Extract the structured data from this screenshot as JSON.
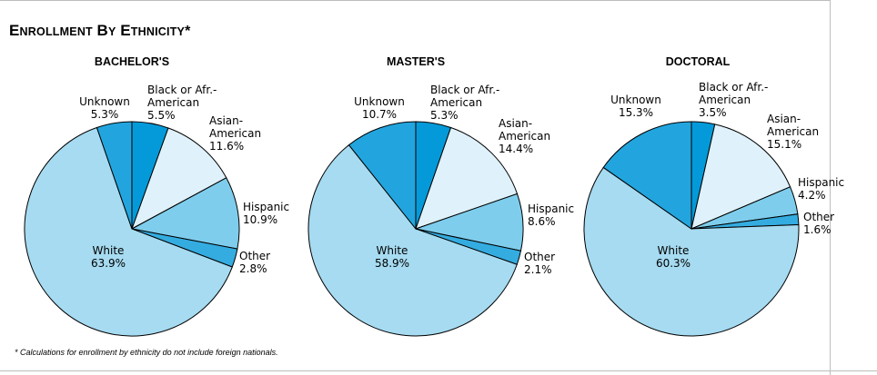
{
  "title": "Enrollment by Ethnicity*",
  "footnote": "* Calculations for enrollment by ethnicity do not include foreign nationals.",
  "colors": {
    "white": "#a6dbf1",
    "unknown": "#22a5de",
    "black": "#049ad9",
    "asian": "#dff1fa",
    "hispanic": "#7fcdec",
    "other": "#34ace0"
  },
  "chart_data": [
    {
      "type": "pie",
      "title": "BACHELOR'S",
      "slices": [
        {
          "name": "Black or Afr.-\nAmerican",
          "value": 5.5,
          "label": "5.5%",
          "color": "black"
        },
        {
          "name": "Asian-\nAmerican",
          "value": 11.6,
          "label": "11.6%",
          "color": "asian"
        },
        {
          "name": "Hispanic",
          "value": 10.9,
          "label": "10.9%",
          "color": "hispanic"
        },
        {
          "name": "Other",
          "value": 2.8,
          "label": "2.8%",
          "color": "other"
        },
        {
          "name": "White",
          "value": 63.9,
          "label": "63.9%",
          "color": "white"
        },
        {
          "name": "Unknown",
          "value": 5.3,
          "label": "5.3%",
          "color": "unknown"
        }
      ]
    },
    {
      "type": "pie",
      "title": "MASTER'S",
      "slices": [
        {
          "name": "Black or Afr.-\nAmerican",
          "value": 5.3,
          "label": "5.3%",
          "color": "black"
        },
        {
          "name": "Asian-\nAmerican",
          "value": 14.4,
          "label": "14.4%",
          "color": "asian"
        },
        {
          "name": "Hispanic",
          "value": 8.6,
          "label": "8.6%",
          "color": "hispanic"
        },
        {
          "name": "Other",
          "value": 2.1,
          "label": "2.1%",
          "color": "other"
        },
        {
          "name": "White",
          "value": 58.9,
          "label": "58.9%",
          "color": "white"
        },
        {
          "name": "Unknown",
          "value": 10.7,
          "label": "10.7%",
          "color": "unknown"
        }
      ]
    },
    {
      "type": "pie",
      "title": "DOCTORAL",
      "slices": [
        {
          "name": "Black or Afr.-\nAmerican",
          "value": 3.5,
          "label": "3.5%",
          "color": "black"
        },
        {
          "name": "Asian-\nAmerican",
          "value": 15.1,
          "label": "15.1%",
          "color": "asian"
        },
        {
          "name": "Hispanic",
          "value": 4.2,
          "label": "4.2%",
          "color": "hispanic"
        },
        {
          "name": "Other",
          "value": 1.6,
          "label": "1.6%",
          "color": "other"
        },
        {
          "name": "White",
          "value": 60.3,
          "label": "60.3%",
          "color": "white"
        },
        {
          "name": "Unknown",
          "value": 15.3,
          "label": "15.3%",
          "color": "unknown"
        }
      ]
    }
  ]
}
